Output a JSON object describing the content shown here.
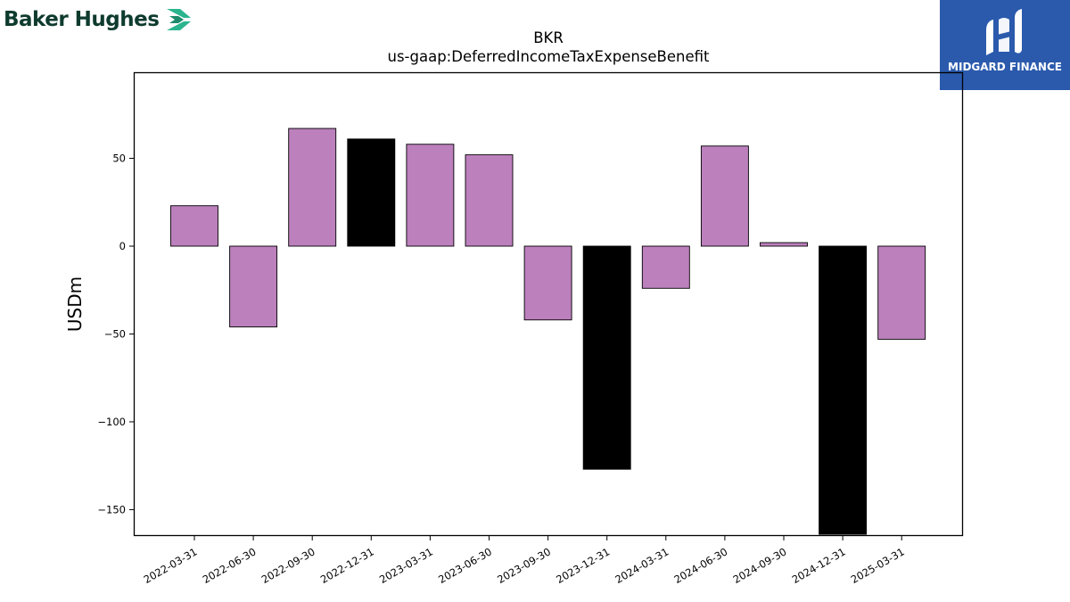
{
  "header": {
    "brand": "Baker Hughes",
    "brand_logo_icon": "baker-hughes-chevron-icon",
    "partner": "MIDGARD FINANCE",
    "partner_logo_icon": "midgard-m-icon"
  },
  "colors": {
    "positive_bar": "#bc80bd",
    "highlight_bar": "#000000",
    "brand_green": "#0e3b2e",
    "brand_teal": "#2bb58f",
    "partner_blue": "#2b5aad"
  },
  "chart_data": {
    "type": "bar",
    "title": "BKR",
    "subtitle": "us-gaap:DeferredIncomeTaxExpenseBenefit",
    "xlabel": "",
    "ylabel": "USDm",
    "categories": [
      "2022-03-31",
      "2022-06-30",
      "2022-09-30",
      "2022-12-31",
      "2023-03-31",
      "2023-06-30",
      "2023-09-30",
      "2023-12-31",
      "2024-03-31",
      "2024-06-30",
      "2024-09-30",
      "2024-12-31",
      "2025-03-31"
    ],
    "values": [
      23,
      -46,
      67,
      61,
      58,
      52,
      -42,
      -127,
      -24,
      57,
      2,
      -164,
      -53
    ],
    "highlight": [
      false,
      false,
      false,
      true,
      false,
      false,
      false,
      true,
      false,
      false,
      false,
      true,
      false
    ],
    "ylim": [
      -165,
      99
    ],
    "yticks": [
      -150,
      -100,
      -50,
      0,
      50
    ],
    "ytick_labels": [
      "−150",
      "−100",
      "−50",
      "0",
      "50"
    ],
    "grid": false,
    "legend": "none"
  }
}
